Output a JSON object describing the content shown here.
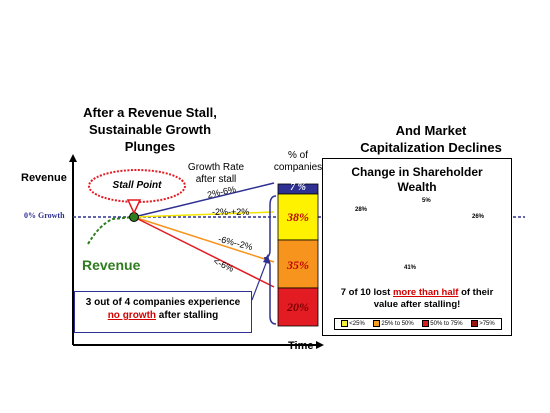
{
  "left_title": [
    "After a Revenue Stall,",
    "Sustainable Growth",
    "Plunges"
  ],
  "right_title": [
    "And Market",
    "Capitalization  Declines"
  ],
  "axis": {
    "y_label": "Revenue",
    "x_label": "Time",
    "zero_growth": "0% Growth"
  },
  "stall_point": "Stall Point",
  "growth_rate_label": [
    "Growth Rate",
    "after stall"
  ],
  "pct_companies_label": [
    "% of",
    "companies"
  ],
  "revenue_label": "Revenue",
  "lines": [
    {
      "label": "2%-6%",
      "color": "#2e3192"
    },
    {
      "label": "-2%-+2%",
      "color": "#f2e600"
    },
    {
      "label": "-6%--2%",
      "color": "#f7941d"
    },
    {
      "label": "<-6%",
      "color": "#e31b23"
    }
  ],
  "bars": [
    {
      "label": "7 %",
      "value": 7,
      "color": "#2e3192"
    },
    {
      "label": "38%",
      "value": 38,
      "color": "#fff200"
    },
    {
      "label": "35%",
      "value": 35,
      "color": "#f7941d"
    },
    {
      "label": "20%",
      "value": 20,
      "color": "#e31b23"
    }
  ],
  "callout": {
    "line1": "3 out of 4 companies experience",
    "red": "no growth",
    "rest": " after stalling"
  },
  "wealth": {
    "title": [
      "Change in Shareholder",
      "Wealth"
    ],
    "slices": [
      {
        "label": "5%",
        "value": 5,
        "color": "#f2ec3c"
      },
      {
        "label": "26%",
        "value": 26,
        "color": "#f4a024"
      },
      {
        "label": "41%",
        "value": 41,
        "color": "#d42020"
      },
      {
        "label": "28%",
        "value": 28,
        "color": "#9b1212"
      }
    ],
    "note_pre": "7 of 10 lost ",
    "note_red": "more than half",
    "note_post": " of their",
    "note_line2": "value after stalling!",
    "legend": [
      {
        "label": "<25%",
        "color": "#f2ec3c"
      },
      {
        "label": "25% to 50%",
        "color": "#f4a024"
      },
      {
        "label": "50% to 75%",
        "color": "#d42020"
      },
      {
        "label": ">75%",
        "color": "#9b1212"
      }
    ]
  }
}
